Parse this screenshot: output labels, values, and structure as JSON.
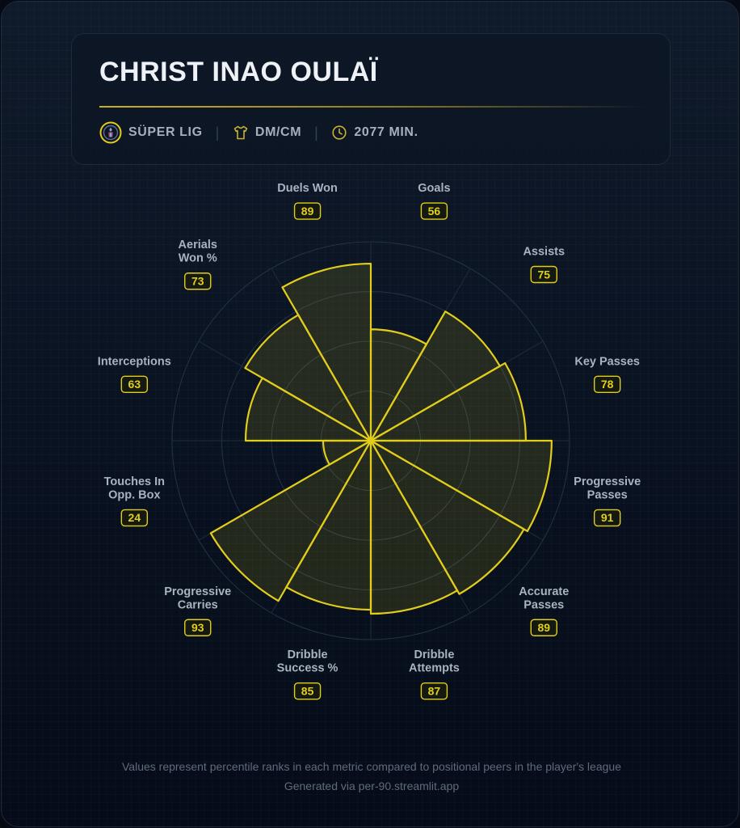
{
  "header": {
    "player_name": "CHRIST INAO OULAÏ",
    "league": "SÜPER LIG",
    "position": "DM/CM",
    "minutes": "2077 MIN."
  },
  "colors": {
    "accent": "#e3cd1b",
    "fill": "rgba(227,205,27,0.13)",
    "label": "#a9b2c0",
    "background": "#0a1322"
  },
  "chart_data": {
    "type": "polar-bar",
    "scale": [
      0,
      100
    ],
    "categories": [
      "Goals",
      "Assists",
      "Key Passes",
      "Progressive Passes",
      "Accurate Passes",
      "Dribble Attempts",
      "Dribble Success %",
      "Progressive Carries",
      "Touches In Opp. Box",
      "Interceptions",
      "Aerials Won %",
      "Duels Won"
    ],
    "label_lines": [
      [
        "Goals"
      ],
      [
        "Assists"
      ],
      [
        "Key Passes"
      ],
      [
        "Progressive",
        "Passes"
      ],
      [
        "Accurate",
        "Passes"
      ],
      [
        "Dribble",
        "Attempts"
      ],
      [
        "Dribble",
        "Success %"
      ],
      [
        "Progressive",
        "Carries"
      ],
      [
        "Touches In",
        "Opp. Box"
      ],
      [
        "Interceptions"
      ],
      [
        "Aerials",
        "Won %"
      ],
      [
        "Duels Won"
      ]
    ],
    "values": [
      56,
      75,
      78,
      91,
      89,
      87,
      85,
      93,
      24,
      63,
      73,
      89
    ]
  },
  "footer": {
    "note": "Values represent percentile ranks in each metric compared to positional peers in the player's league",
    "credit": "Generated via per-90.streamlit.app"
  }
}
